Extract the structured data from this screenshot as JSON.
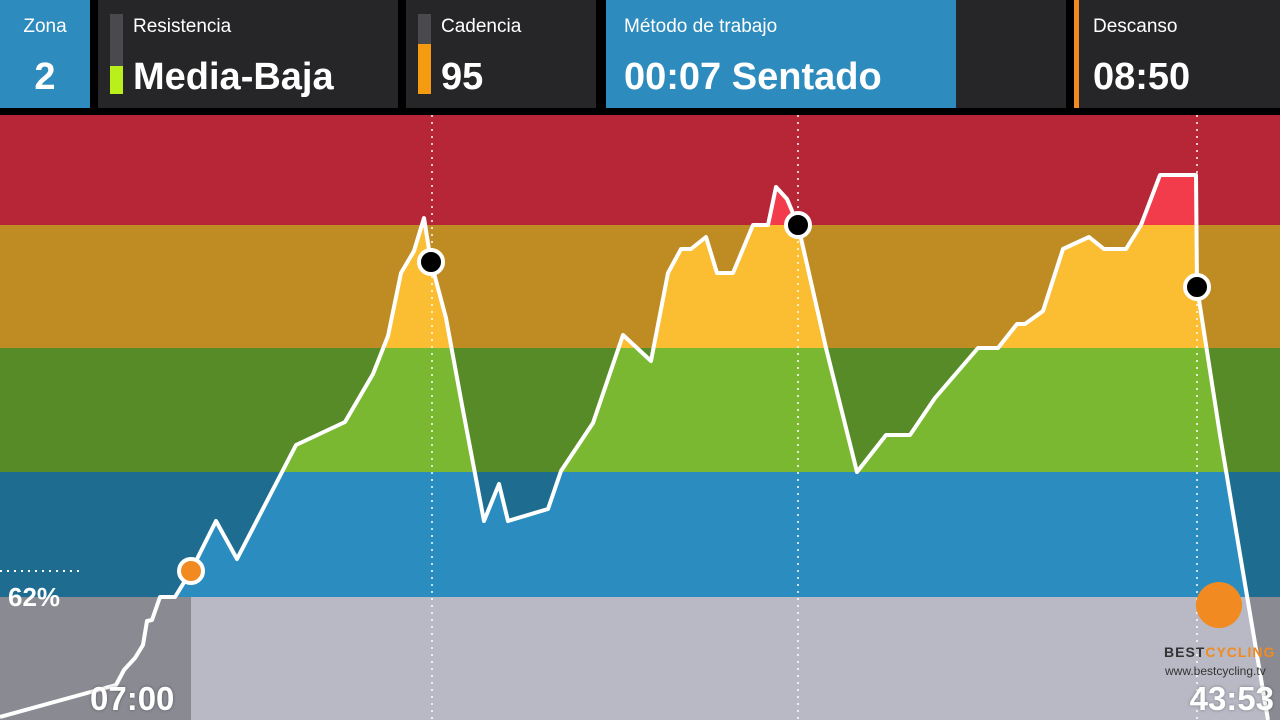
{
  "header": {
    "zona": {
      "label": "Zona",
      "value": "2"
    },
    "resistencia": {
      "label": "Resistencia",
      "value": "Media-Baja",
      "indicator_color": "#b9ef1a",
      "level": 0.35
    },
    "cadencia": {
      "label": "Cadencia",
      "value": "95",
      "indicator_color": "#f49b12",
      "level": 0.62
    },
    "metodo": {
      "label": "Método de trabajo",
      "value": "00:07 Sentado",
      "progress": 0.76
    },
    "descanso": {
      "label": "Descanso",
      "value": "08:50"
    }
  },
  "session": {
    "start_time": "07:00",
    "end_time": "43:53",
    "threshold_percent": "62%"
  },
  "zones": [
    {
      "zone": 5,
      "dark": "#b72636",
      "light": "#b72636"
    },
    {
      "zone": 4,
      "dark": "#bf8c24",
      "light": "#fbbd31"
    },
    {
      "zone": 3,
      "dark": "#578b27",
      "light": "#7ab832"
    },
    {
      "zone": 2,
      "dark": "#1e6d91",
      "light": "#2b8dbf"
    },
    {
      "zone": 1,
      "dark": "#8a8a93",
      "light": "#b9b9c5"
    }
  ],
  "logo": {
    "brand_a": "BEST",
    "brand_b": "CYCLING",
    "url": "www.bestcycling.tv"
  }
}
